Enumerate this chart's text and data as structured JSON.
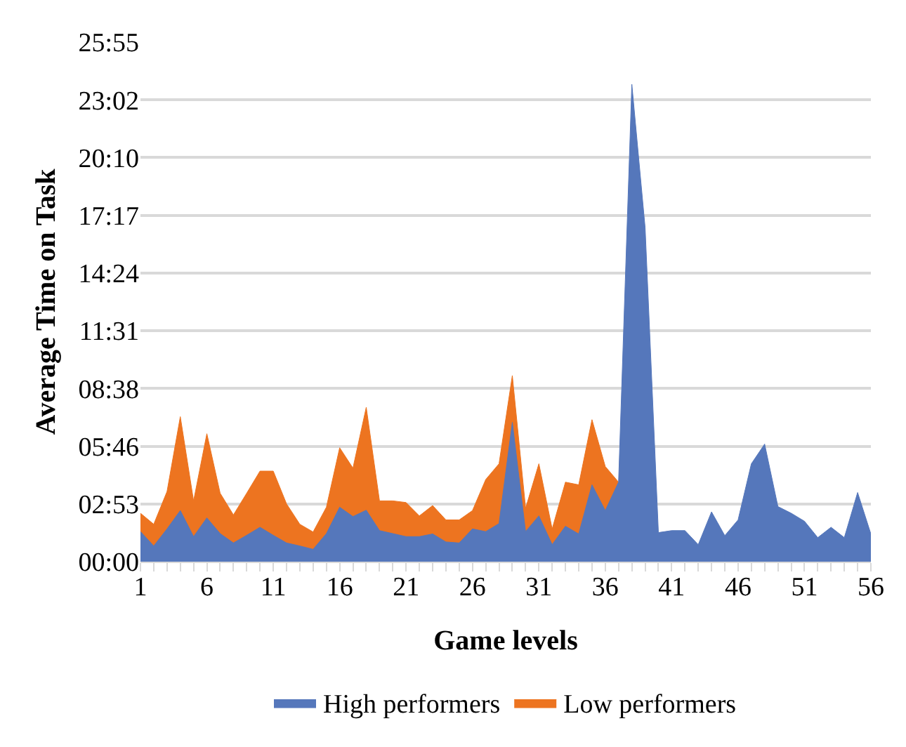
{
  "chart_data": {
    "type": "area",
    "xlabel": "Game levels",
    "ylabel": "Average Time on Task",
    "x": [
      1,
      2,
      3,
      4,
      5,
      6,
      7,
      8,
      9,
      10,
      11,
      12,
      13,
      14,
      15,
      16,
      17,
      18,
      19,
      20,
      21,
      22,
      23,
      24,
      25,
      26,
      27,
      28,
      29,
      30,
      31,
      32,
      33,
      34,
      35,
      36,
      37,
      38,
      39,
      40,
      41,
      42,
      43,
      44,
      45,
      46,
      47,
      48,
      49,
      50,
      51,
      52,
      53,
      54,
      55,
      56
    ],
    "series": [
      {
        "name": "High performers",
        "color": "#5577bb",
        "values": [
          90,
          47,
          98,
          153,
          75,
          131,
          84,
          56,
          79,
          103,
          79,
          56,
          47,
          37,
          84,
          163,
          135,
          154,
          93,
          84,
          75,
          75,
          83,
          59,
          56,
          98,
          90,
          114,
          417,
          90,
          137,
          51,
          106,
          83,
          230,
          153,
          238,
          1429,
          1000,
          87,
          93,
          93,
          51,
          149,
          78,
          125,
          293,
          352,
          165,
          145,
          121,
          72,
          103,
          72,
          207,
          83
        ]
      },
      {
        "name": "Low performers",
        "color": "#ed7420",
        "values": [
          145,
          112,
          210,
          434,
          182,
          383,
          205,
          140,
          205,
          271,
          271,
          173,
          112,
          89,
          163,
          341,
          280,
          462,
          182,
          182,
          177,
          137,
          168,
          125,
          125,
          153,
          246,
          293,
          557,
          160,
          293,
          98,
          238,
          230,
          425,
          285,
          238,
          null,
          null,
          null,
          null,
          null,
          null,
          null,
          null,
          null,
          null,
          null,
          null,
          null,
          null,
          null,
          null,
          null,
          null,
          null
        ]
      }
    ],
    "xlim": [
      1,
      56
    ],
    "xticks": [
      1,
      6,
      11,
      16,
      21,
      26,
      31,
      36,
      41,
      46,
      51,
      56
    ],
    "ylim": [
      0,
      1555.2
    ],
    "yticks": [
      {
        "value": 0,
        "label": "00:00"
      },
      {
        "value": 172.8,
        "label": "02:53"
      },
      {
        "value": 345.6,
        "label": "05:46"
      },
      {
        "value": 518.4,
        "label": "08:38"
      },
      {
        "value": 691.2,
        "label": "11:31"
      },
      {
        "value": 864,
        "label": "14:24"
      },
      {
        "value": 1036.8,
        "label": "17:17"
      },
      {
        "value": 1209.6,
        "label": "20:10"
      },
      {
        "value": 1382.4,
        "label": "23:02"
      },
      {
        "value": 1555.2,
        "label": "25:55"
      }
    ],
    "grid": "y",
    "legend": "bottom"
  }
}
